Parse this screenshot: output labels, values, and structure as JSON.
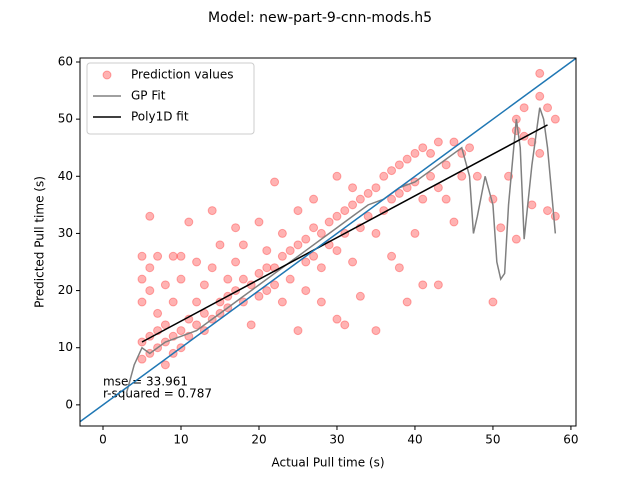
{
  "chart_data": {
    "type": "scatter",
    "title": "Model: new-part-9-cnn-mods.h5",
    "xlabel": "Actual Pull time (s)",
    "ylabel": "Predicted Pull time (s)",
    "xlim": [
      -2.95,
      60.65
    ],
    "ylim": [
      -3.7,
      60.7
    ],
    "xticks": [
      0,
      10,
      20,
      30,
      40,
      50,
      60
    ],
    "yticks": [
      0,
      10,
      20,
      30,
      40,
      50,
      60
    ],
    "legend": "upper left",
    "annotations": [
      "mse = 33.961",
      "r-squared = 0.787"
    ],
    "reference_line": {
      "x": [
        -5,
        65
      ],
      "values": [
        -5,
        65
      ],
      "color": "#1f77b4"
    },
    "series": [
      {
        "name": "Prediction values",
        "type": "scatter",
        "color": "#ff0000",
        "x": [
          5,
          5,
          5,
          5,
          5,
          6,
          6,
          6,
          6,
          6,
          7,
          7,
          7,
          7,
          8,
          8,
          8,
          8,
          9,
          9,
          9,
          9,
          10,
          10,
          10,
          10,
          11,
          11,
          11,
          12,
          12,
          12,
          13,
          13,
          13,
          14,
          14,
          14,
          15,
          15,
          15,
          16,
          16,
          16,
          17,
          17,
          17,
          18,
          18,
          18,
          19,
          19,
          20,
          20,
          20,
          21,
          21,
          21,
          22,
          22,
          22,
          23,
          23,
          23,
          24,
          24,
          25,
          25,
          25,
          26,
          26,
          26,
          27,
          27,
          27,
          28,
          28,
          28,
          29,
          29,
          30,
          30,
          30,
          30,
          31,
          31,
          31,
          32,
          32,
          32,
          33,
          33,
          33,
          34,
          34,
          35,
          35,
          35,
          36,
          36,
          37,
          37,
          37,
          38,
          38,
          38,
          39,
          39,
          39,
          40,
          40,
          40,
          41,
          41,
          41,
          42,
          42,
          43,
          43,
          43,
          44,
          44,
          45,
          45,
          46,
          46,
          47,
          48,
          50,
          50,
          51,
          52,
          53,
          53,
          53,
          54,
          54,
          55,
          55,
          56,
          56,
          56,
          57,
          57,
          58,
          58
        ],
        "values": [
          11,
          26,
          22,
          8,
          18,
          12,
          9,
          24,
          33,
          20,
          10,
          13,
          26,
          16,
          11,
          21,
          7,
          14,
          12,
          26,
          18,
          9,
          13,
          26,
          22,
          10,
          15,
          12,
          32,
          14,
          25,
          18,
          16,
          21,
          13,
          15,
          34,
          24,
          16,
          18,
          28,
          17,
          22,
          19,
          25,
          20,
          31,
          22,
          18,
          28,
          21,
          14,
          23,
          19,
          32,
          24,
          20,
          27,
          39,
          24,
          21,
          26,
          18,
          30,
          27,
          22,
          28,
          13,
          34,
          29,
          25,
          20,
          31,
          26,
          36,
          30,
          24,
          18,
          32,
          28,
          33,
          27,
          40,
          15,
          34,
          30,
          14,
          35,
          25,
          38,
          36,
          31,
          19,
          37,
          33,
          38,
          30,
          13,
          40,
          34,
          41,
          36,
          26,
          42,
          37,
          24,
          43,
          38,
          18,
          44,
          39,
          30,
          45,
          36,
          21,
          44,
          40,
          46,
          38,
          21,
          42,
          36,
          46,
          32,
          44,
          40,
          45,
          40,
          18,
          36,
          31,
          40,
          50,
          48,
          29,
          52,
          47,
          46,
          35,
          58,
          54,
          44,
          52,
          34,
          50,
          33
        ]
      },
      {
        "name": "GP Fit",
        "type": "line",
        "color": "#808080",
        "x": [
          3,
          4,
          5,
          6,
          8,
          10,
          12,
          14,
          16,
          18,
          20,
          22,
          24,
          26,
          28,
          30,
          32,
          34,
          36,
          38,
          40,
          42,
          44,
          45,
          46,
          47,
          47.5,
          48,
          49,
          50,
          50.5,
          51,
          51.5,
          52,
          53,
          53.5,
          54,
          55,
          56,
          56.5,
          57,
          58
        ],
        "values": [
          2,
          7,
          10,
          9,
          11,
          12,
          13,
          15,
          17,
          19,
          21,
          23,
          25,
          27,
          29,
          31,
          33,
          35,
          36,
          38,
          39,
          41,
          43,
          44,
          45,
          40,
          30,
          33,
          40,
          35,
          25,
          22,
          23,
          35,
          50,
          45,
          29,
          42,
          52,
          50,
          45,
          30
        ]
      },
      {
        "name": "Poly1D fit",
        "type": "line",
        "color": "#000000",
        "x": [
          5,
          57
        ],
        "values": [
          11,
          49
        ]
      }
    ]
  }
}
